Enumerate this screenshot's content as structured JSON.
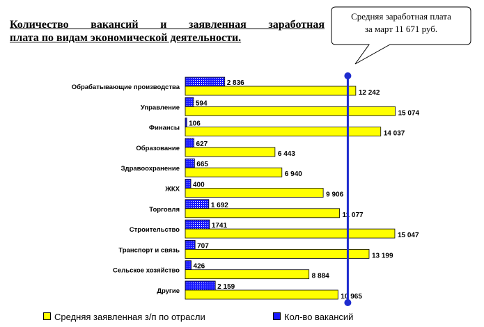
{
  "title": {
    "line1": "Количество вакансий и заявленная заработная",
    "line2": "плата по видам экономической деятельности."
  },
  "callout": {
    "line1": "Средняя заработная плата",
    "line2": "за март 11 671 руб."
  },
  "colors": {
    "wage_fill": "#ffff00",
    "vacancy_fill": "#1a1aff",
    "average_line": "#1e2ccf"
  },
  "chart_data": {
    "type": "bar",
    "orientation": "horizontal",
    "categories": [
      "Обрабатывающие производства",
      "Управление",
      "Финансы",
      "Образование",
      "Здравоохранение",
      "ЖКХ",
      "Торговля",
      "Строительство",
      "Транспорт и связь",
      "Сельское хозяйство",
      "Другие"
    ],
    "series": [
      {
        "name": "Кол-во вакансий",
        "values": [
          2836,
          594,
          106,
          627,
          665,
          400,
          1692,
          1741,
          707,
          426,
          2159
        ],
        "labels": [
          "2 836",
          "594",
          "106",
          "627",
          "665",
          "400",
          "1 692",
          "1741",
          "707",
          "426",
          "2 159"
        ]
      },
      {
        "name": "Средняя заявленная з/п по отрасли",
        "values": [
          12242,
          15074,
          14037,
          6443,
          6940,
          9906,
          11077,
          15047,
          13199,
          8884,
          10965
        ],
        "labels": [
          "12 242",
          "15 074",
          "14 037",
          "6 443",
          "6 940",
          "9 906",
          "11 077",
          "15 047",
          "13 199",
          "8 884",
          "10 965"
        ]
      }
    ],
    "reference_line": {
      "value": 11671
    },
    "legend": {
      "wage": "Средняя заявленная з/п по отрасли",
      "vacancy": "Кол-во вакансий"
    },
    "grid": false,
    "legend_position": "bottom"
  }
}
